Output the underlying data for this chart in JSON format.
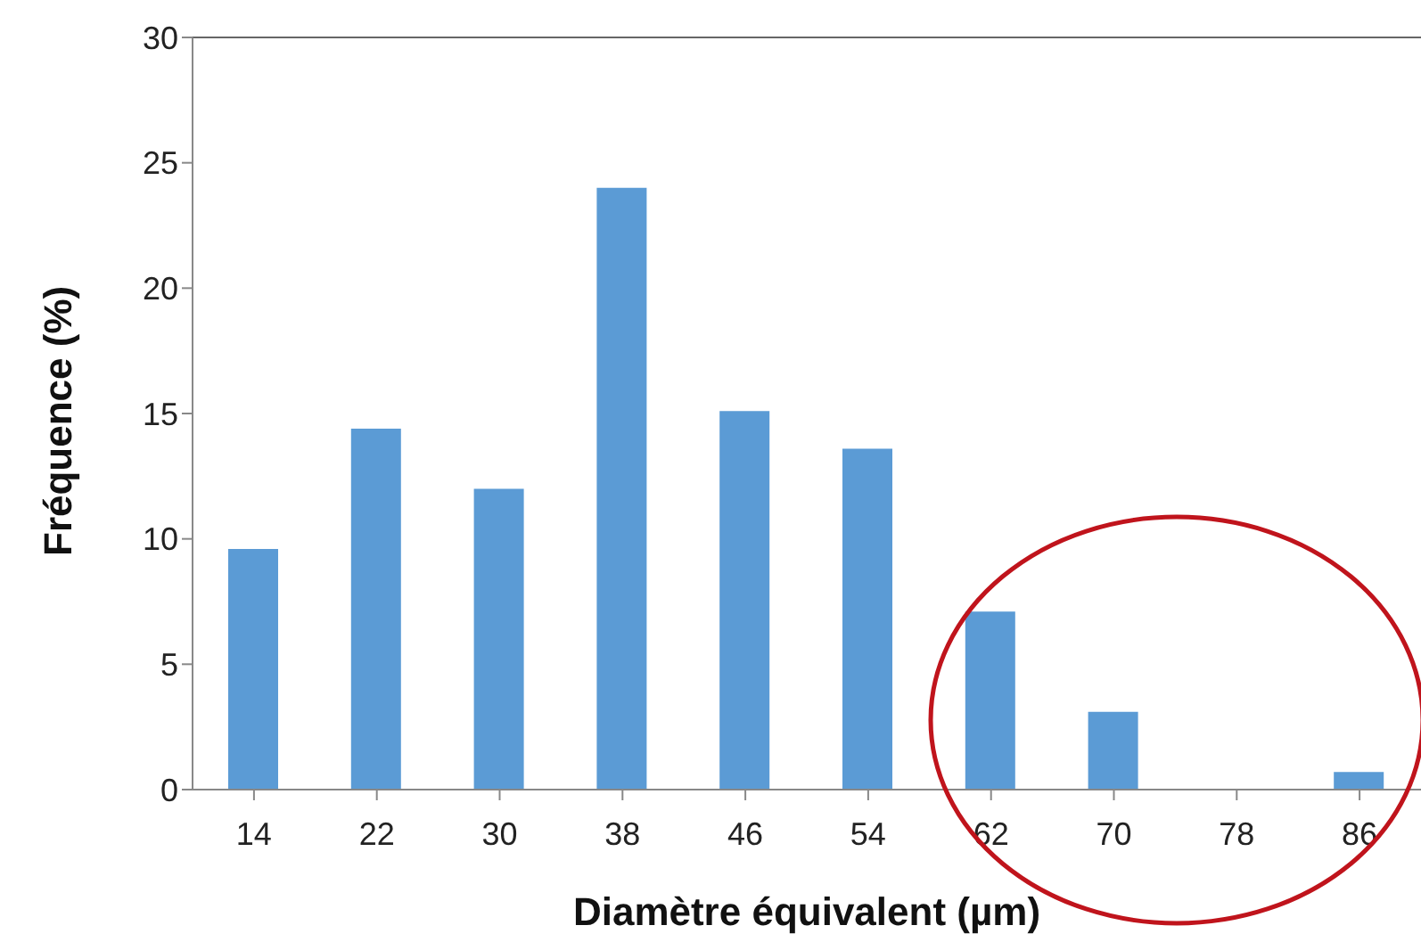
{
  "chart_data": {
    "type": "bar",
    "xlabel": "Diamètre équivalent (µm)",
    "ylabel": "Fréquence (%)",
    "categories": [
      "14",
      "22",
      "30",
      "38",
      "46",
      "54",
      "62",
      "70",
      "78",
      "86"
    ],
    "values": [
      9.6,
      14.4,
      12.0,
      24.0,
      15.1,
      13.6,
      7.1,
      3.1,
      0,
      0.7
    ],
    "color": "#5b9bd5",
    "ylim": [
      0,
      30
    ],
    "yticks": [
      0,
      5,
      10,
      15,
      20,
      25,
      30
    ],
    "grid": false,
    "legend": false
  }
}
